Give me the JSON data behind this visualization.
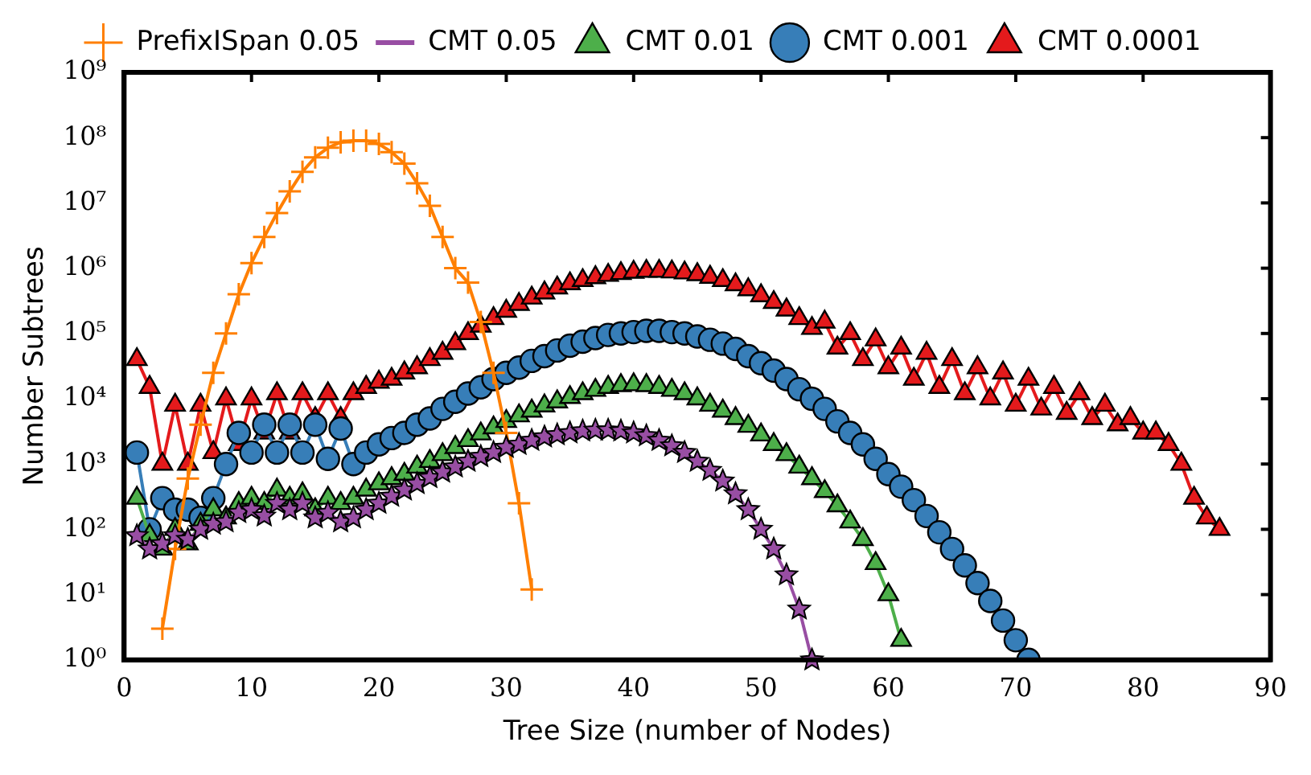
{
  "chart_data": {
    "type": "line",
    "xlabel": "Tree Size (number of Nodes)",
    "ylabel": "Number Subtrees",
    "log": "y",
    "legend": "top",
    "grid": false,
    "xlim": [
      0,
      90
    ],
    "xticks": [
      0,
      10,
      20,
      30,
      40,
      50,
      60,
      70,
      80,
      90
    ],
    "ylim": [
      1,
      1000000000
    ],
    "yticks": [
      {
        "value": 1,
        "label": "10⁰"
      },
      {
        "value": 10,
        "label": "10¹"
      },
      {
        "value": 100,
        "label": "10²"
      },
      {
        "value": 1000,
        "label": "10³"
      },
      {
        "value": 10000,
        "label": "10⁴"
      },
      {
        "value": 100000,
        "label": "10⁵"
      },
      {
        "value": 1000000,
        "label": "10⁶"
      },
      {
        "value": 10000000,
        "label": "10⁷"
      },
      {
        "value": 100000000,
        "label": "10⁸"
      },
      {
        "value": 1000000000,
        "label": "10⁹"
      }
    ],
    "series": [
      {
        "name": "CMT 0.0001",
        "color": "#e41a1c",
        "marker": "triangle",
        "x": [
          1,
          2,
          3,
          4,
          5,
          6,
          7,
          8,
          9,
          10,
          11,
          12,
          13,
          14,
          15,
          16,
          17,
          18,
          19,
          20,
          21,
          22,
          23,
          24,
          25,
          26,
          27,
          28,
          29,
          30,
          31,
          32,
          33,
          34,
          35,
          36,
          37,
          38,
          39,
          40,
          41,
          42,
          43,
          44,
          45,
          46,
          47,
          48,
          49,
          50,
          51,
          52,
          53,
          54,
          55,
          56,
          57,
          58,
          59,
          60,
          61,
          62,
          63,
          64,
          65,
          66,
          67,
          68,
          69,
          70,
          71,
          72,
          73,
          74,
          75,
          76,
          77,
          78,
          79,
          80,
          81,
          82,
          83,
          84,
          85,
          86
        ],
        "values": [
          40000,
          15000,
          1000,
          8000,
          1000,
          8000,
          1500,
          10000,
          2000,
          10000,
          3000,
          12000,
          3000,
          12000,
          5000,
          12000,
          5000,
          12000,
          15000,
          18000,
          20000,
          25000,
          30000,
          40000,
          50000,
          70000,
          100000,
          130000,
          170000,
          220000,
          280000,
          350000,
          420000,
          500000,
          580000,
          650000,
          720000,
          780000,
          830000,
          870000,
          900000,
          900000,
          880000,
          850000,
          800000,
          730000,
          650000,
          560000,
          470000,
          380000,
          300000,
          230000,
          170000,
          120000,
          150000,
          60000,
          100000,
          40000,
          80000,
          30000,
          60000,
          20000,
          50000,
          15000,
          40000,
          12000,
          30000,
          10000,
          25000,
          8000,
          20000,
          7000,
          15000,
          6000,
          12000,
          5000,
          8000,
          4000,
          5000,
          3000,
          3000,
          2000,
          1000,
          300,
          150,
          100
        ]
      },
      {
        "name": "CMT 0.001",
        "color": "#377eb8",
        "marker": "circle",
        "x": [
          1,
          2,
          3,
          4,
          5,
          6,
          7,
          8,
          9,
          10,
          11,
          12,
          13,
          14,
          15,
          16,
          17,
          18,
          19,
          20,
          21,
          22,
          23,
          24,
          25,
          26,
          27,
          28,
          29,
          30,
          31,
          32,
          33,
          34,
          35,
          36,
          37,
          38,
          39,
          40,
          41,
          42,
          43,
          44,
          45,
          46,
          47,
          48,
          49,
          50,
          51,
          52,
          53,
          54,
          55,
          56,
          57,
          58,
          59,
          60,
          61,
          62,
          63,
          64,
          65,
          66,
          67,
          68,
          69,
          70,
          71
        ],
        "values": [
          1500,
          100,
          300,
          200,
          200,
          150,
          300,
          1000,
          3000,
          1500,
          4000,
          1500,
          4000,
          1500,
          4000,
          1200,
          3500,
          1000,
          1500,
          2000,
          2500,
          3000,
          4000,
          5000,
          7000,
          9000,
          12000,
          15000,
          20000,
          25000,
          30000,
          38000,
          45000,
          55000,
          65000,
          75000,
          85000,
          95000,
          100000,
          105000,
          110000,
          110000,
          105000,
          100000,
          90000,
          80000,
          70000,
          58000,
          45000,
          35000,
          27000,
          20000,
          14000,
          10000,
          7000,
          4500,
          3000,
          2000,
          1200,
          700,
          450,
          280,
          160,
          90,
          50,
          28,
          15,
          8,
          4,
          2,
          1
        ]
      },
      {
        "name": "CMT 0.01",
        "color": "#4daf4a",
        "marker": "triangle",
        "x": [
          1,
          2,
          3,
          4,
          5,
          6,
          7,
          8,
          9,
          10,
          11,
          12,
          13,
          14,
          15,
          16,
          17,
          18,
          19,
          20,
          21,
          22,
          23,
          24,
          25,
          26,
          27,
          28,
          29,
          30,
          31,
          32,
          33,
          34,
          35,
          36,
          37,
          38,
          39,
          40,
          41,
          42,
          43,
          44,
          45,
          46,
          47,
          48,
          49,
          50,
          51,
          52,
          53,
          54,
          55,
          56,
          57,
          58,
          59,
          60,
          61
        ],
        "values": [
          300,
          80,
          50,
          100,
          60,
          120,
          200,
          150,
          250,
          300,
          250,
          400,
          300,
          350,
          200,
          300,
          250,
          300,
          400,
          500,
          600,
          700,
          900,
          1100,
          1400,
          1800,
          2300,
          2900,
          3600,
          4500,
          5500,
          6500,
          7800,
          9000,
          10500,
          12000,
          13500,
          15000,
          16000,
          16500,
          16000,
          15000,
          13500,
          12000,
          10000,
          8000,
          6500,
          5000,
          3800,
          2800,
          2000,
          1400,
          900,
          600,
          380,
          230,
          130,
          70,
          30,
          10,
          2
        ]
      },
      {
        "name": "CMT 0.05",
        "color": "#984ea3",
        "marker": "star",
        "x": [
          1,
          2,
          3,
          4,
          5,
          6,
          7,
          8,
          9,
          10,
          11,
          12,
          13,
          14,
          15,
          16,
          17,
          18,
          19,
          20,
          21,
          22,
          23,
          24,
          25,
          26,
          27,
          28,
          29,
          30,
          31,
          32,
          33,
          34,
          35,
          36,
          37,
          38,
          39,
          40,
          41,
          42,
          43,
          44,
          45,
          46,
          47,
          48,
          49,
          50,
          51,
          52,
          53,
          54
        ],
        "values": [
          80,
          50,
          60,
          80,
          70,
          100,
          120,
          130,
          180,
          200,
          160,
          250,
          200,
          250,
          150,
          180,
          130,
          150,
          200,
          250,
          320,
          400,
          500,
          620,
          750,
          900,
          1100,
          1300,
          1500,
          1800,
          2000,
          2300,
          2600,
          2800,
          3000,
          3200,
          3300,
          3300,
          3200,
          3000,
          2700,
          2300,
          1900,
          1500,
          1100,
          800,
          550,
          350,
          200,
          100,
          50,
          20,
          6,
          1
        ]
      },
      {
        "name": "PrefixISpan 0.05",
        "color": "#ff7f00",
        "marker": "cross",
        "x": [
          3,
          4,
          5,
          6,
          7,
          8,
          9,
          10,
          11,
          12,
          13,
          14,
          15,
          16,
          17,
          18,
          19,
          20,
          21,
          22,
          23,
          24,
          25,
          26,
          27,
          28,
          29,
          30,
          31,
          32
        ],
        "values": [
          3,
          50,
          600,
          4000,
          25000,
          100000,
          400000,
          1200000,
          3000000,
          7000000,
          15000000,
          30000000,
          50000000,
          70000000,
          85000000,
          90000000,
          90000000,
          80000000,
          60000000,
          40000000,
          20000000,
          9000000,
          3000000,
          1000000,
          600000,
          150000,
          25000,
          3000,
          250,
          12
        ]
      }
    ]
  }
}
